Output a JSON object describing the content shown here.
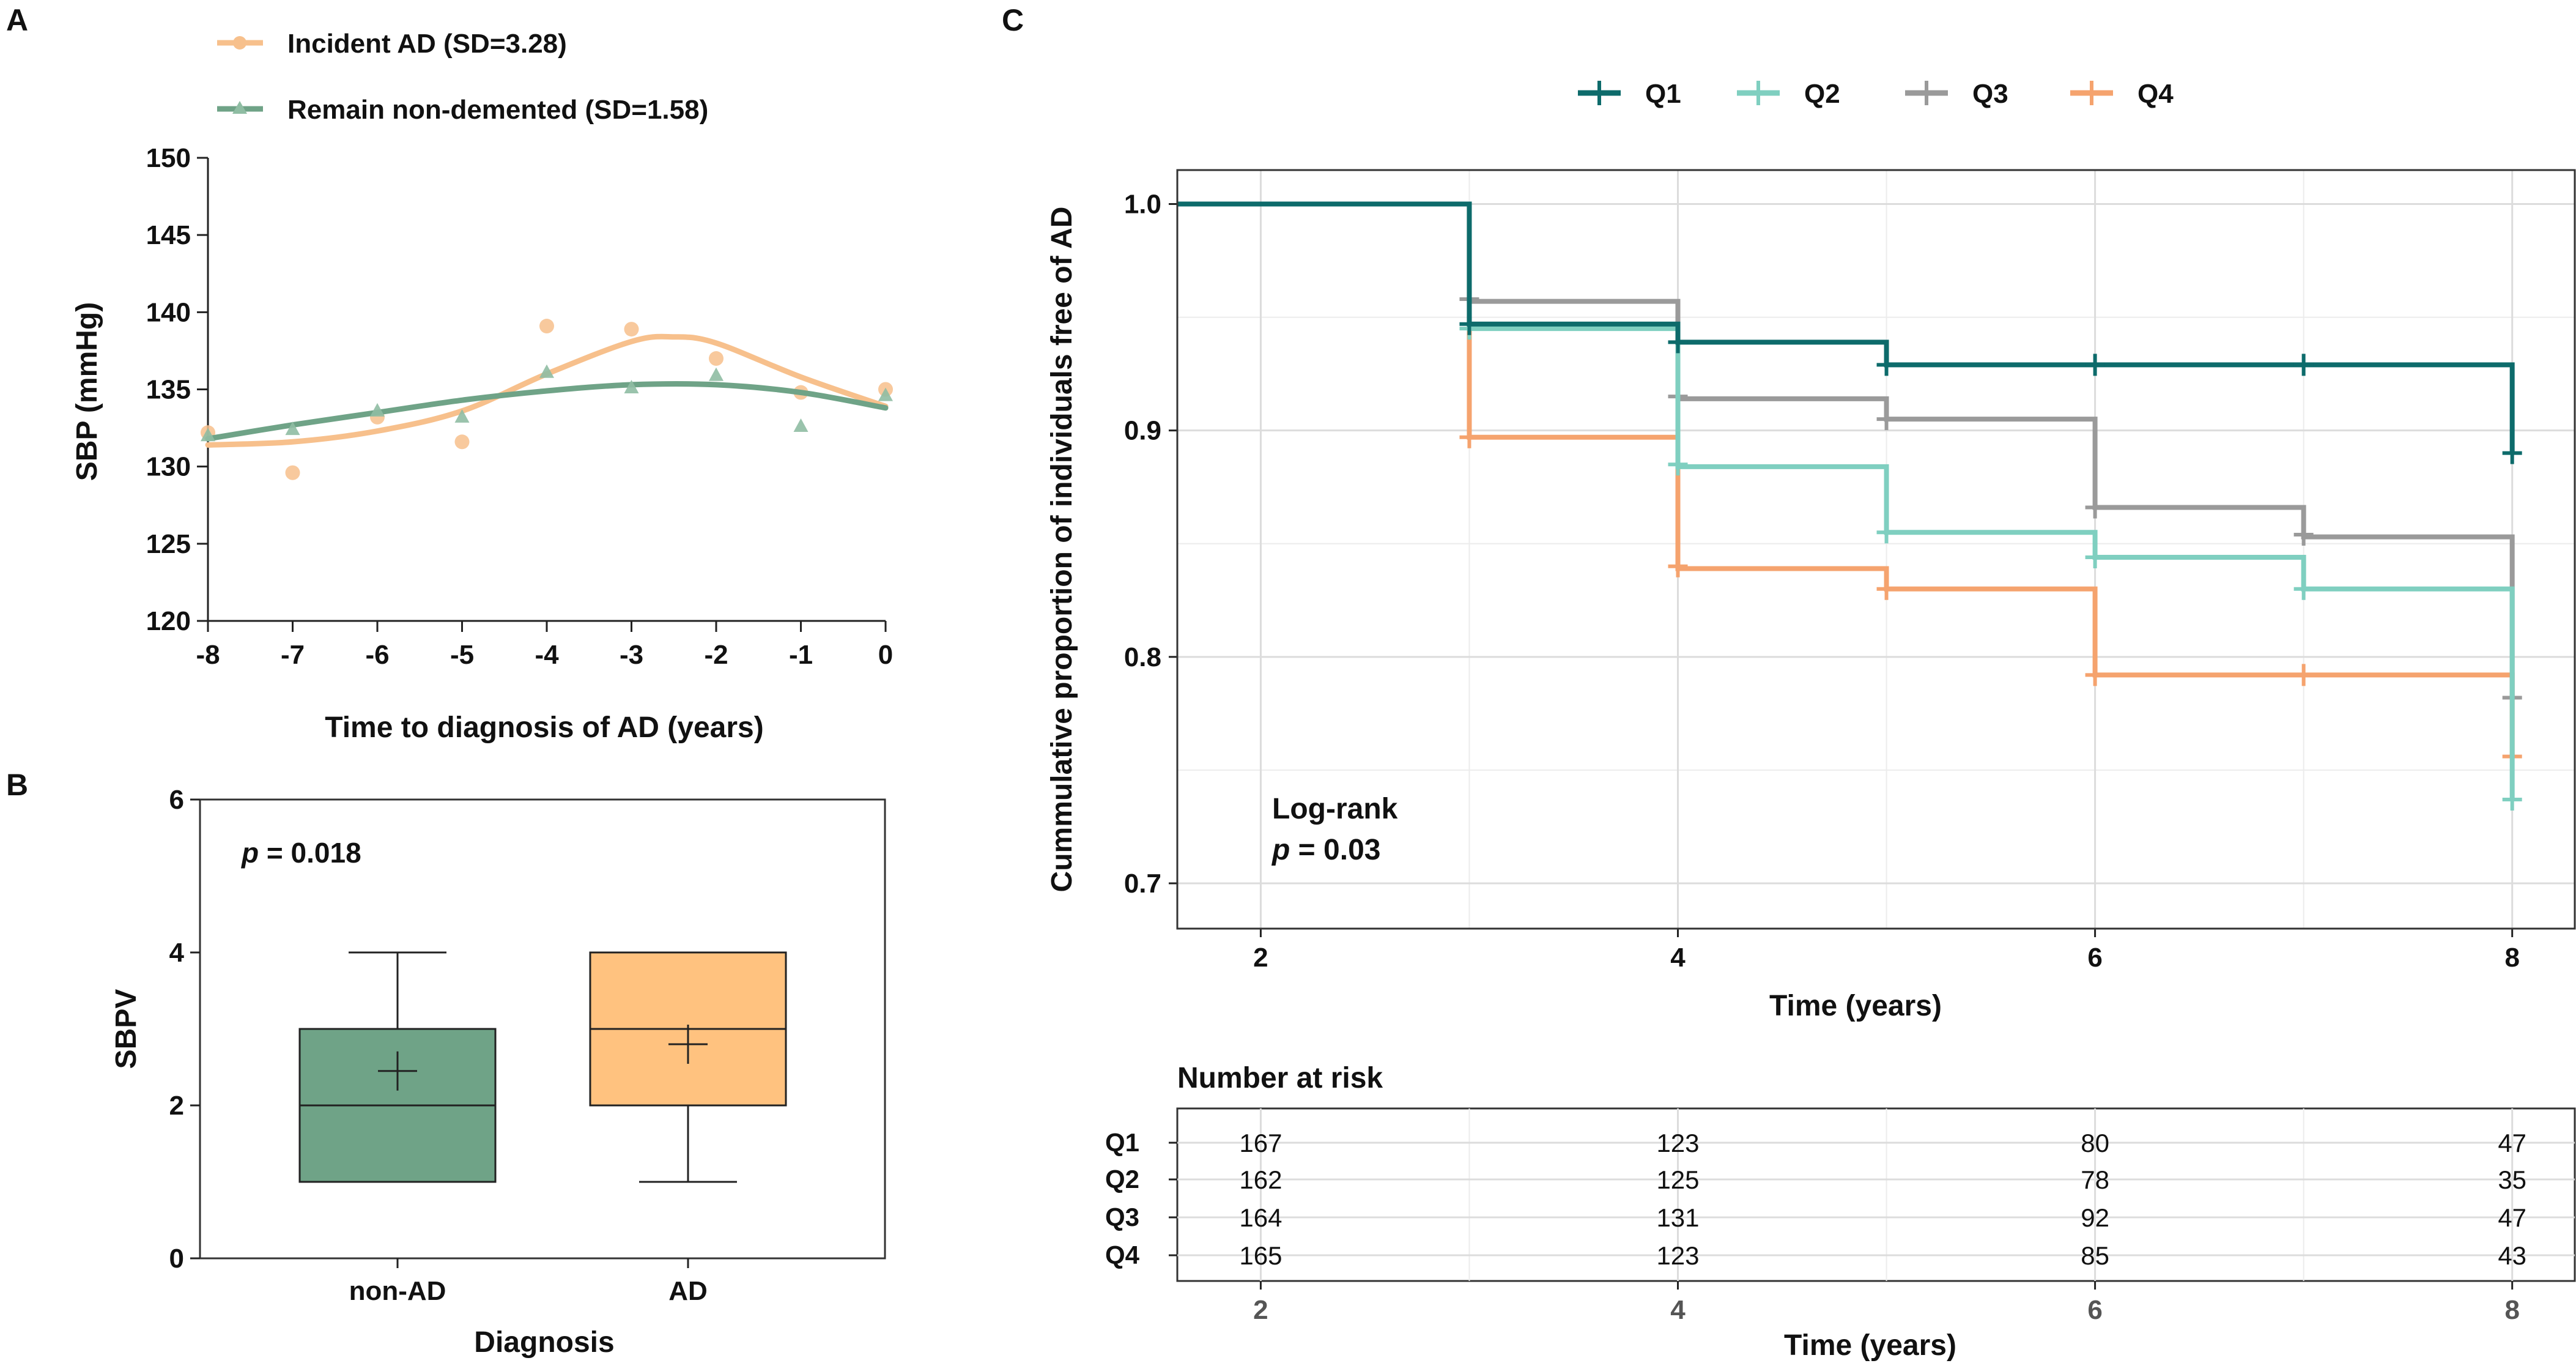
{
  "chart_data": [
    {
      "panel": "A",
      "type": "scatter",
      "xlabel": "Time to diagnosis of AD (years)",
      "ylabel": "SBP (mmHg)",
      "xlim": [
        -8,
        0
      ],
      "ylim": [
        120,
        150
      ],
      "xticks": [
        -8,
        -7,
        -6,
        -5,
        -4,
        -3,
        -2,
        -1,
        0
      ],
      "yticks": [
        120,
        125,
        130,
        135,
        140,
        145,
        150
      ],
      "series": [
        {
          "name": "Incident AD (SD=3.28)",
          "color": "#f7c08c",
          "marker": "circle",
          "x": [
            -8,
            -7,
            -6,
            -5,
            -4,
            -3,
            -2,
            -1,
            0
          ],
          "y": [
            132.2,
            129.6,
            133.2,
            131.6,
            139.1,
            138.9,
            137.0,
            134.8,
            135.0
          ],
          "smooth_x": [
            -8,
            -7,
            -6,
            -5,
            -4,
            -3,
            -2.5,
            -2,
            -1,
            0
          ],
          "smooth_y": [
            131.4,
            131.6,
            132.3,
            133.6,
            136.0,
            138.1,
            138.4,
            138.0,
            135.8,
            133.9
          ]
        },
        {
          "name": "Remain non-demented (SD=1.58)",
          "color": "#6fa387",
          "marker": "triangle",
          "x": [
            -8,
            -7,
            -6,
            -5,
            -4,
            -3,
            -2,
            -1,
            0
          ],
          "y": [
            132.0,
            132.4,
            133.6,
            133.2,
            136.1,
            135.1,
            135.9,
            132.6,
            134.6
          ],
          "smooth_x": [
            -8,
            -7,
            -6,
            -5,
            -4,
            -3,
            -2,
            -1,
            0
          ],
          "smooth_y": [
            131.8,
            132.7,
            133.5,
            134.3,
            134.9,
            135.3,
            135.3,
            134.8,
            133.8
          ]
        }
      ]
    },
    {
      "panel": "B",
      "type": "box",
      "xlabel": "Diagnosis",
      "ylabel": "SBPV",
      "ylim": [
        0,
        6
      ],
      "yticks": [
        0,
        2,
        4,
        6
      ],
      "annotation_italic": "p",
      "annotation_rest": " = 0.018",
      "groups": [
        {
          "label": "non-AD",
          "color": "#6fa387",
          "min": 1,
          "q1": 1,
          "median": 2,
          "q3": 3,
          "max": 4,
          "mean": 2.45
        },
        {
          "label": "AD",
          "color": "#ffc27f",
          "min": 1,
          "q1": 2,
          "median": 3,
          "q3": 4,
          "max": 4,
          "mean": 2.8
        }
      ]
    },
    {
      "panel": "C",
      "type": "line",
      "subtype": "kaplan-meier step",
      "xlabel": "Time (years)",
      "ylabel": "Cummulative proportion of individuals free of AD",
      "xlim": [
        1.6,
        8.3
      ],
      "ylim": [
        0.68,
        1.015
      ],
      "xticks": [
        2,
        4,
        6,
        8
      ],
      "yticks": [
        0.7,
        0.8,
        0.9,
        1.0
      ],
      "ytick_labels": [
        "0.7",
        "0.8",
        "0.9",
        "1.0"
      ],
      "annotation_line1": "Log-rank",
      "annotation_italic": "p",
      "annotation_rest": " = 0.03",
      "series": [
        {
          "name": "Q1",
          "color": "#0d6b6b",
          "steps": [
            [
              1.6,
              1.0
            ],
            [
              3,
              0.947
            ],
            [
              4,
              0.939
            ],
            [
              5,
              0.929
            ],
            [
              8,
              0.89
            ]
          ],
          "censor": [
            [
              3,
              0.947
            ],
            [
              4,
              0.939
            ],
            [
              5,
              0.929
            ],
            [
              6,
              0.929
            ],
            [
              7,
              0.929
            ],
            [
              8,
              0.89
            ]
          ]
        },
        {
          "name": "Q2",
          "color": "#7fcfc0",
          "steps": [
            [
              1.6,
              1.0
            ],
            [
              3,
              0.945
            ],
            [
              4,
              0.884
            ],
            [
              5,
              0.855
            ],
            [
              6,
              0.844
            ],
            [
              7,
              0.83
            ],
            [
              8,
              0.737
            ]
          ],
          "censor": [
            [
              3,
              0.945
            ],
            [
              4,
              0.885
            ],
            [
              5,
              0.855
            ],
            [
              6,
              0.844
            ],
            [
              7,
              0.83
            ],
            [
              8,
              0.737
            ]
          ]
        },
        {
          "name": "Q3",
          "color": "#9a9a9a",
          "steps": [
            [
              1.6,
              1.0
            ],
            [
              3,
              0.957
            ],
            [
              4,
              0.914
            ],
            [
              5,
              0.905
            ],
            [
              6,
              0.866
            ],
            [
              7,
              0.853
            ],
            [
              8,
              0.782
            ]
          ],
          "censor": [
            [
              3,
              0.958
            ],
            [
              4,
              0.915
            ],
            [
              5,
              0.905
            ],
            [
              6,
              0.866
            ],
            [
              7,
              0.854
            ],
            [
              8,
              0.782
            ]
          ]
        },
        {
          "name": "Q4",
          "color": "#f5a36e",
          "steps": [
            [
              1.6,
              1.0
            ],
            [
              3,
              0.897
            ],
            [
              4,
              0.839
            ],
            [
              5,
              0.83
            ],
            [
              6,
              0.792
            ],
            [
              8,
              0.756
            ]
          ],
          "censor": [
            [
              3,
              0.897
            ],
            [
              4,
              0.84
            ],
            [
              5,
              0.83
            ],
            [
              6,
              0.792
            ],
            [
              7,
              0.792
            ],
            [
              8,
              0.756
            ]
          ]
        }
      ],
      "risk_table": {
        "title": "Number at risk",
        "xlabel": "Time (years)",
        "times": [
          2,
          4,
          6,
          8
        ],
        "rows": [
          {
            "name": "Q1",
            "values": [
              167,
              123,
              80,
              47
            ]
          },
          {
            "name": "Q2",
            "values": [
              162,
              125,
              78,
              35
            ]
          },
          {
            "name": "Q3",
            "values": [
              164,
              131,
              92,
              47
            ]
          },
          {
            "name": "Q4",
            "values": [
              165,
              123,
              85,
              43
            ]
          }
        ]
      }
    }
  ],
  "panel_labels": [
    "A",
    "B",
    "C"
  ]
}
